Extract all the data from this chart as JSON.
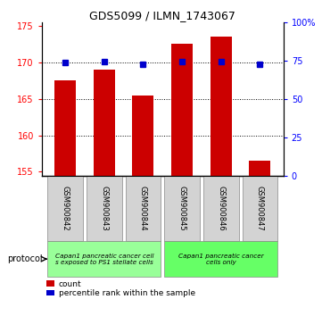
{
  "title": "GDS5099 / ILMN_1743067",
  "samples": [
    "GSM900842",
    "GSM900843",
    "GSM900844",
    "GSM900845",
    "GSM900846",
    "GSM900847"
  ],
  "counts": [
    167.5,
    169.0,
    165.5,
    172.5,
    173.5,
    156.5
  ],
  "percentiles": [
    73.5,
    74.0,
    72.5,
    74.0,
    74.0,
    72.5
  ],
  "ylim_left": [
    154.5,
    175.5
  ],
  "ylim_right": [
    0,
    100
  ],
  "yticks_left": [
    155,
    160,
    165,
    170,
    175
  ],
  "yticks_right": [
    0,
    25,
    50,
    75,
    100
  ],
  "ytick_labels_right": [
    "0",
    "25",
    "50",
    "75",
    "100%"
  ],
  "bar_color": "#cc0000",
  "square_color": "#0000cc",
  "protocol_groups": [
    {
      "label": "Capan1 pancreatic cancer cell\ns exposed to PS1 stellate cells",
      "indices": [
        0,
        1,
        2
      ],
      "color": "#99ff99"
    },
    {
      "label": "Capan1 pancreatic cancer\ncells only",
      "indices": [
        3,
        4,
        5
      ],
      "color": "#66ff66"
    }
  ],
  "legend_count_label": "count",
  "legend_percentile_label": "percentile rank within the sample",
  "protocol_label": "protocol",
  "bar_width": 0.55,
  "base_value": 154.5,
  "gridlines_at": [
    160,
    165,
    170
  ]
}
